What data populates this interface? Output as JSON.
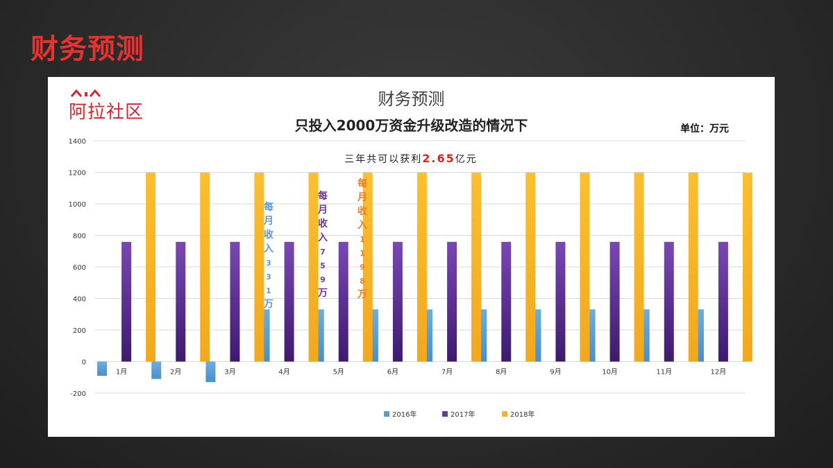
{
  "slide": {
    "title": "财务预测"
  },
  "logo": {
    "text": "阿拉社区"
  },
  "chart_data": {
    "type": "bar",
    "title": "财务预测",
    "subtitle": "只投入2000万资金升级改造的情况下",
    "unit": "单位：万元",
    "note_prefix": "三年共可以获利",
    "note_value": "2.65",
    "note_suffix": "亿元",
    "categories": [
      "1月",
      "2月",
      "3月",
      "4月",
      "5月",
      "6月",
      "7月",
      "8月",
      "9月",
      "10月",
      "11月",
      "12月"
    ],
    "series": [
      {
        "name": "2016年",
        "values": [
          -90,
          -110,
          -130,
          331,
          331,
          331,
          331,
          331,
          331,
          331,
          331,
          331
        ]
      },
      {
        "name": "2017年",
        "values": [
          759,
          759,
          759,
          759,
          759,
          759,
          759,
          759,
          759,
          759,
          759,
          759
        ]
      },
      {
        "name": "2018年",
        "values": [
          1198,
          1198,
          1198,
          1198,
          1198,
          1198,
          1198,
          1198,
          1198,
          1198,
          1198,
          1198
        ]
      }
    ],
    "ylim": [
      -200,
      1400
    ],
    "yticks": [
      -200,
      0,
      200,
      400,
      600,
      800,
      1000,
      1200,
      1400
    ],
    "grid": true,
    "legend_placement": "bottom",
    "colors": [
      "#5b9bd5",
      "#6a3a9e",
      "#f7b52c"
    ],
    "annotations": [
      {
        "series": 0,
        "text": "每月收入331万",
        "color": "#5b9bd5"
      },
      {
        "series": 1,
        "text": "每月收入759万",
        "color": "#6a3a9e"
      },
      {
        "series": 2,
        "text": "每月收入1198万",
        "color": "#f07f1f"
      }
    ]
  }
}
